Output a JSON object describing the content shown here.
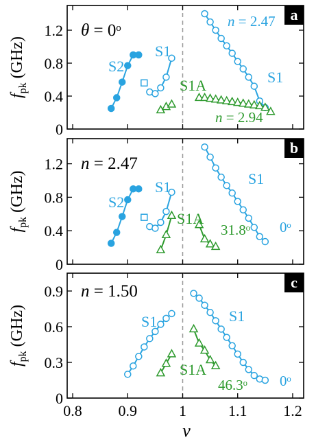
{
  "colors": {
    "blue": "#29a3e0",
    "green": "#2e9a2e",
    "axis": "#000000",
    "dashed": "#999999"
  },
  "axes": {
    "xlabel": "ν",
    "ylabel_main": "f",
    "ylabel_sub": "pk",
    "ylabel_unit": " (GHz)"
  },
  "chart_data": [
    {
      "type": "line",
      "panel": "a",
      "xlim": [
        0.79,
        1.22
      ],
      "ylim": [
        0,
        1.5
      ],
      "xticks": [
        0.8,
        0.9,
        1.0,
        1.1,
        1.2
      ],
      "yticks": [
        0,
        0.4,
        0.8,
        1.2
      ],
      "yticklabels": [
        "0",
        "0.4",
        "0.8",
        "1.2"
      ],
      "vline_x": 1.0,
      "series": [
        {
          "name": "S2",
          "color": "blue",
          "marker": "filled-circle",
          "x": [
            0.87,
            0.88,
            0.89,
            0.9,
            0.91,
            0.92
          ],
          "y": [
            0.25,
            0.38,
            0.57,
            0.77,
            0.9,
            0.9
          ]
        },
        {
          "color": "blue",
          "marker": "open-square",
          "x": [
            0.93
          ],
          "y": [
            0.56
          ]
        },
        {
          "name": "S1",
          "color": "blue",
          "marker": "open-circle",
          "x": [
            0.94,
            0.95,
            0.96,
            0.97,
            0.98
          ],
          "y": [
            0.45,
            0.43,
            0.5,
            0.63,
            0.86
          ]
        },
        {
          "color": "blue",
          "marker": "open-circle",
          "x": [
            1.04,
            1.05,
            1.06,
            1.07,
            1.08,
            1.09,
            1.1,
            1.11,
            1.12,
            1.13,
            1.14,
            1.15
          ],
          "y": [
            1.4,
            1.3,
            1.2,
            1.1,
            1.01,
            0.92,
            0.82,
            0.73,
            0.63,
            0.52,
            0.34,
            0.26
          ]
        },
        {
          "name": "S1A",
          "color": "green",
          "marker": "open-triangle",
          "x": [
            0.96,
            0.97,
            0.98
          ],
          "y": [
            0.23,
            0.27,
            0.3
          ]
        },
        {
          "color": "green",
          "marker": "open-triangle",
          "x": [
            1.03,
            1.04,
            1.05,
            1.06,
            1.07,
            1.08,
            1.09,
            1.1,
            1.11,
            1.12,
            1.13,
            1.14,
            1.15,
            1.16
          ],
          "y": [
            0.38,
            0.38,
            0.37,
            0.36,
            0.35,
            0.34,
            0.33,
            0.32,
            0.31,
            0.3,
            0.29,
            0.28,
            0.26,
            0.21
          ]
        }
      ],
      "annotations": {
        "header": "θ = 0ᵒ",
        "S2": "S2",
        "S1_left": "S1",
        "S1A": "S1A",
        "n_top": "n = 2.47",
        "S1_right": "S1",
        "n_bottom": "n = 2.94"
      },
      "badge": "a"
    },
    {
      "type": "line",
      "panel": "b",
      "xlim": [
        0.79,
        1.22
      ],
      "ylim": [
        0,
        1.5
      ],
      "xticks": [
        0.8,
        0.9,
        1.0,
        1.1,
        1.2
      ],
      "yticks": [
        0,
        0.4,
        0.8,
        1.2
      ],
      "yticklabels": [
        "0",
        "0.4",
        "0.8",
        "1.2"
      ],
      "vline_x": 1.0,
      "series": [
        {
          "name": "S2",
          "color": "blue",
          "marker": "filled-circle",
          "x": [
            0.87,
            0.88,
            0.89,
            0.9,
            0.91,
            0.92
          ],
          "y": [
            0.25,
            0.38,
            0.57,
            0.77,
            0.9,
            0.9
          ]
        },
        {
          "color": "blue",
          "marker": "open-square",
          "x": [
            0.93
          ],
          "y": [
            0.56
          ]
        },
        {
          "name": "S1",
          "color": "blue",
          "marker": "open-circle",
          "x": [
            0.94,
            0.95,
            0.96,
            0.97,
            0.98
          ],
          "y": [
            0.45,
            0.43,
            0.5,
            0.63,
            0.86
          ]
        },
        {
          "color": "blue",
          "marker": "open-circle",
          "x": [
            1.04,
            1.05,
            1.06,
            1.07,
            1.08,
            1.09,
            1.1,
            1.11,
            1.12,
            1.13,
            1.14,
            1.15
          ],
          "y": [
            1.4,
            1.28,
            1.15,
            1.04,
            0.94,
            0.85,
            0.75,
            0.65,
            0.55,
            0.44,
            0.33,
            0.27
          ]
        },
        {
          "name": "S1A",
          "color": "green",
          "marker": "open-triangle",
          "x": [
            0.96,
            0.97,
            0.98
          ],
          "y": [
            0.17,
            0.35,
            0.58
          ]
        },
        {
          "color": "green",
          "marker": "open-triangle",
          "x": [
            1.03,
            1.04,
            1.05,
            1.06
          ],
          "y": [
            0.47,
            0.3,
            0.24,
            0.21
          ]
        }
      ],
      "annotations": {
        "header": "n = 2.47",
        "S2": "S2",
        "S1_left": "S1",
        "S1A": "S1A",
        "S1_right": "S1",
        "angle_mid": "31.8ᵒ",
        "angle_right": "0ᵒ"
      },
      "badge": "b"
    },
    {
      "type": "line",
      "panel": "c",
      "xlim": [
        0.79,
        1.22
      ],
      "ylim": [
        0,
        1.05
      ],
      "xticks": [
        0.8,
        0.9,
        1.0,
        1.1,
        1.2
      ],
      "xticklabels": [
        "0.8",
        "0.9",
        "1",
        "1.1",
        "1.2"
      ],
      "yticks": [
        0,
        0.3,
        0.6,
        0.9
      ],
      "yticklabels": [
        "0",
        "0.3",
        "0.6",
        "0.9"
      ],
      "vline_x": 1.0,
      "series": [
        {
          "name": "S1",
          "color": "blue",
          "marker": "open-circle",
          "x": [
            0.9,
            0.91,
            0.92,
            0.93,
            0.94,
            0.95,
            0.96,
            0.97,
            0.98
          ],
          "y": [
            0.2,
            0.27,
            0.35,
            0.43,
            0.5,
            0.56,
            0.62,
            0.67,
            0.71
          ]
        },
        {
          "color": "blue",
          "marker": "open-circle",
          "x": [
            1.02,
            1.03,
            1.04,
            1.05,
            1.06,
            1.07,
            1.08,
            1.09,
            1.1,
            1.11,
            1.12,
            1.13,
            1.14,
            1.15
          ],
          "y": [
            0.88,
            0.84,
            0.78,
            0.72,
            0.65,
            0.58,
            0.51,
            0.44,
            0.37,
            0.3,
            0.24,
            0.19,
            0.16,
            0.15
          ]
        },
        {
          "name": "S1A",
          "color": "green",
          "marker": "open-triangle",
          "x": [
            0.96,
            0.97,
            0.98
          ],
          "y": [
            0.21,
            0.29,
            0.37
          ]
        },
        {
          "color": "green",
          "marker": "open-triangle",
          "x": [
            1.02,
            1.03,
            1.04,
            1.05,
            1.06
          ],
          "y": [
            0.58,
            0.46,
            0.4,
            0.32,
            0.27
          ]
        }
      ],
      "annotations": {
        "header": "n = 1.50",
        "S1_left": "S1",
        "S1_right": "S1",
        "S1A": "S1A",
        "angle_mid": "46.3ᵒ",
        "angle_right": "0ᵒ"
      },
      "badge": "c"
    }
  ]
}
